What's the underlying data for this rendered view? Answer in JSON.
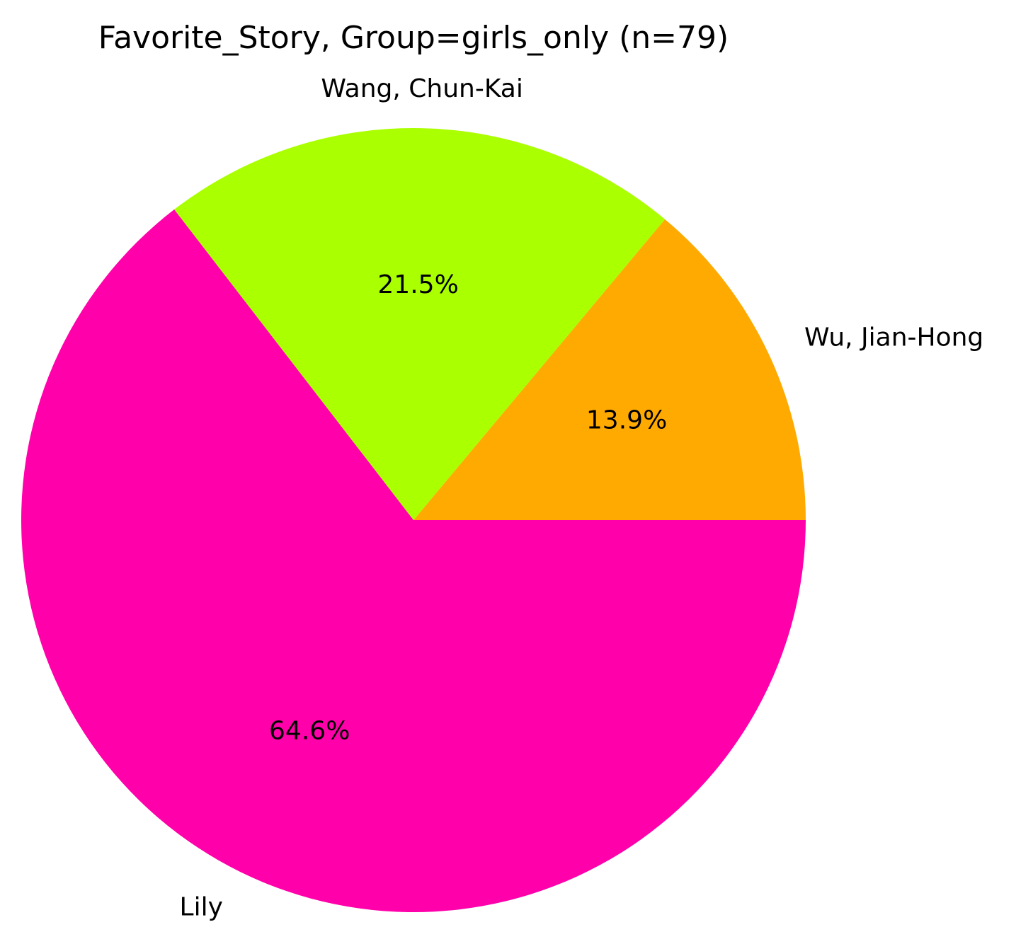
{
  "chart_data": {
    "type": "pie",
    "title": "Favorite_Story, Group=girls_only (n=79)",
    "slices": [
      {
        "label": "Wu, Jian-Hong",
        "value": 11,
        "percent_label": "13.9%",
        "color": "#ffaa00"
      },
      {
        "label": "Wang, Chun-Kai",
        "value": 17,
        "percent_label": "21.5%",
        "color": "#aaff00"
      },
      {
        "label": "Lily",
        "value": 51,
        "percent_label": "64.6%",
        "color": "#ff00aa"
      }
    ],
    "start_angle_deg": 0,
    "direction": "counterclockwise",
    "legend": "none"
  }
}
